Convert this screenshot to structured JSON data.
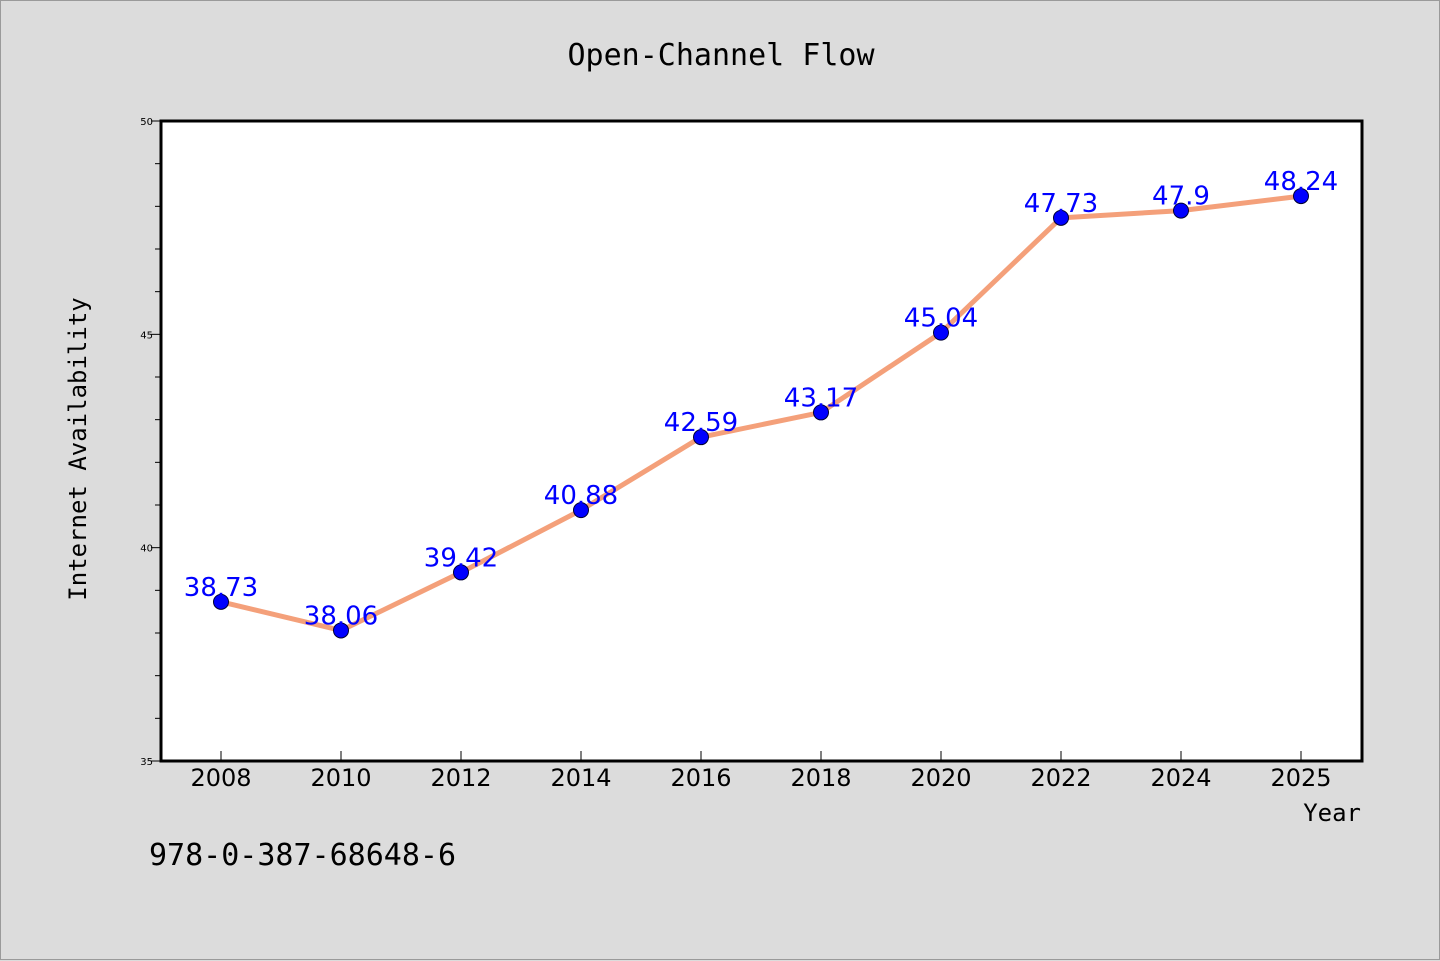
{
  "chart_data": {
    "type": "line",
    "title": "Open-Channel Flow",
    "xlabel": "Year",
    "ylabel": "Internet Availability",
    "categories": [
      "2008",
      "2010",
      "2012",
      "2014",
      "2016",
      "2018",
      "2020",
      "2022",
      "2024",
      "2025"
    ],
    "series": [
      {
        "values": [
          38.73,
          38.06,
          39.42,
          40.88,
          42.59,
          43.17,
          45.04,
          47.73,
          47.9,
          48.24
        ],
        "data_labels": [
          "38.73",
          "38.06",
          "39.42",
          "40.88",
          "42.59",
          "43.17",
          "45.04",
          "47.73",
          "47.9",
          "48.24"
        ]
      }
    ],
    "ylim": [
      35,
      50
    ],
    "y_ticks": [
      "35",
      "40",
      "45",
      "50"
    ],
    "grid": false,
    "legend": "none",
    "colors": {
      "line": "#f4a07a",
      "marker": "#0000ff",
      "data_label": "#0000ff",
      "background": "#dcdcdc",
      "plot_area": "#ffffff"
    }
  },
  "footer": {
    "code": "978-0-387-68648-6"
  }
}
